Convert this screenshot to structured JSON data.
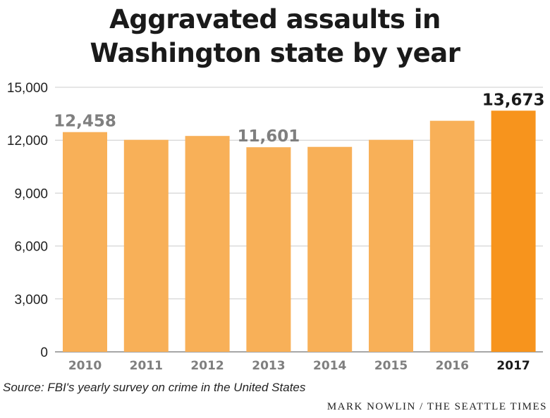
{
  "chart_data": {
    "type": "bar",
    "title": "Aggravated assaults in Washington state by year",
    "title_lines": [
      "Aggravated assaults in",
      "Washington state by year"
    ],
    "categories": [
      "2010",
      "2011",
      "2012",
      "2013",
      "2014",
      "2015",
      "2016",
      "2017"
    ],
    "values": [
      12458,
      12020,
      12240,
      11601,
      11620,
      12020,
      13100,
      13673
    ],
    "highlight_category": "2017",
    "data_labels": [
      {
        "category": "2010",
        "text": "12,458"
      },
      {
        "category": "2013",
        "text": "11,601"
      },
      {
        "category": "2017",
        "text": "13,673"
      }
    ],
    "y_ticks": [
      {
        "value": 0,
        "label": "0"
      },
      {
        "value": 3000,
        "label": "3,000"
      },
      {
        "value": 6000,
        "label": "6,000"
      },
      {
        "value": 9000,
        "label": "9,000"
      },
      {
        "value": 12000,
        "label": "12,000"
      },
      {
        "value": 15000,
        "label": "15,000"
      }
    ],
    "ylim": [
      0,
      15000
    ],
    "xlabel": "",
    "ylabel": "",
    "grid": true,
    "colors": {
      "bar": "#f8b058",
      "highlight": "#f7941d",
      "muted_label": "#7f7f7f",
      "highlight_label": "#1a1a1a",
      "grid": "#cccccc"
    }
  },
  "source": "Source: FBI's yearly survey on crime in the United States",
  "credit": "MARK NOWLIN / THE SEATTLE TIMES"
}
